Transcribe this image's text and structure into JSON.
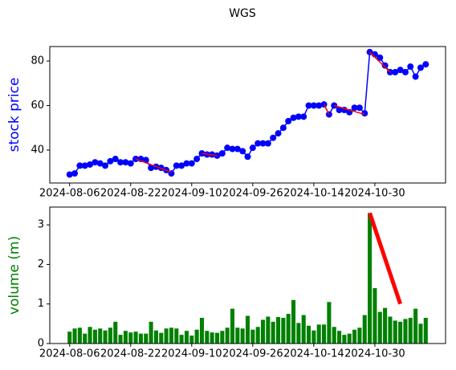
{
  "chart_data": [
    {
      "type": "line",
      "title": "WGS",
      "ylabel": "stock price",
      "color": "#0000ff",
      "label_color": "#0000ff",
      "trend_color": "#ff0000",
      "categories": [
        "2024-08-06",
        null,
        null,
        null,
        null,
        null,
        null,
        null,
        null,
        null,
        null,
        null,
        "2024-08-22",
        null,
        null,
        null,
        null,
        null,
        null,
        null,
        null,
        null,
        null,
        null,
        "2024-09-10",
        null,
        null,
        null,
        null,
        null,
        null,
        null,
        null,
        null,
        null,
        null,
        "2024-09-26",
        null,
        null,
        null,
        null,
        null,
        null,
        null,
        null,
        null,
        null,
        null,
        "2024-10-14",
        null,
        null,
        null,
        null,
        null,
        null,
        null,
        null,
        null,
        null,
        null,
        "2024-10-30",
        null,
        null,
        null,
        null,
        null,
        null,
        null,
        null,
        null,
        null
      ],
      "values": [
        29,
        29.5,
        33,
        33,
        33.5,
        34.5,
        34,
        33,
        35,
        36,
        34.5,
        34.5,
        34,
        36,
        36,
        35.5,
        32,
        32.5,
        32,
        31,
        29.5,
        33,
        33,
        34,
        34,
        36,
        38.5,
        38,
        38,
        37.5,
        38.5,
        41,
        40.5,
        40.5,
        39.5,
        37,
        41,
        43,
        43,
        43,
        45.5,
        47.5,
        50,
        53,
        54.5,
        55,
        55,
        60,
        60,
        60,
        60.5,
        56,
        60,
        58,
        58,
        57,
        59,
        59,
        56.5,
        84,
        83,
        81.5,
        78,
        75,
        75,
        76,
        75,
        77.5,
        73,
        77,
        78.5
      ],
      "trend_lines": [
        {
          "x": [
            13,
            20
          ],
          "y": [
            36,
            30
          ]
        },
        {
          "x": [
            26,
            29
          ],
          "y": [
            38.5,
            37.5
          ]
        },
        {
          "x": [
            50,
            51
          ],
          "y": [
            60.5,
            56
          ]
        },
        {
          "x": [
            52,
            58
          ],
          "y": [
            60,
            56
          ]
        },
        {
          "x": [
            59,
            63
          ],
          "y": [
            84,
            75
          ]
        }
      ],
      "ylim": [
        25.2,
        86.5
      ],
      "yticks": [
        40,
        60,
        80
      ]
    },
    {
      "type": "bar",
      "ylabel": "volume (m)",
      "color": "#008000",
      "label_color": "#008000",
      "trend_color": "#ff0000",
      "categories": [
        "2024-08-06",
        null,
        null,
        null,
        null,
        null,
        null,
        null,
        null,
        null,
        null,
        null,
        "2024-08-22",
        null,
        null,
        null,
        null,
        null,
        null,
        null,
        null,
        null,
        null,
        null,
        "2024-09-10",
        null,
        null,
        null,
        null,
        null,
        null,
        null,
        null,
        null,
        null,
        null,
        "2024-09-26",
        null,
        null,
        null,
        null,
        null,
        null,
        null,
        null,
        null,
        null,
        null,
        "2024-10-14",
        null,
        null,
        null,
        null,
        null,
        null,
        null,
        null,
        null,
        null,
        null,
        "2024-10-30",
        null,
        null,
        null,
        null,
        null,
        null,
        null,
        null,
        null,
        null
      ],
      "values": [
        0.3,
        0.38,
        0.4,
        0.25,
        0.42,
        0.35,
        0.38,
        0.33,
        0.4,
        0.55,
        0.22,
        0.32,
        0.28,
        0.3,
        0.25,
        0.25,
        0.55,
        0.33,
        0.27,
        0.38,
        0.4,
        0.38,
        0.22,
        0.32,
        0.2,
        0.35,
        0.65,
        0.32,
        0.28,
        0.27,
        0.32,
        0.4,
        0.88,
        0.4,
        0.38,
        0.7,
        0.35,
        0.42,
        0.6,
        0.68,
        0.55,
        0.67,
        0.65,
        0.75,
        1.1,
        0.52,
        0.72,
        0.45,
        0.33,
        0.48,
        0.48,
        1.05,
        0.42,
        0.32,
        0.22,
        0.25,
        0.35,
        0.4,
        0.72,
        3.3,
        1.4,
        0.8,
        0.9,
        0.68,
        0.58,
        0.55,
        0.62,
        0.65,
        0.88,
        0.5,
        0.65
      ],
      "trend_lines": [
        {
          "x": [
            59,
            65
          ],
          "y": [
            3.3,
            1.0
          ]
        }
      ],
      "ylim": [
        0,
        3.45
      ],
      "yticks": [
        0,
        1,
        2,
        3
      ]
    }
  ]
}
